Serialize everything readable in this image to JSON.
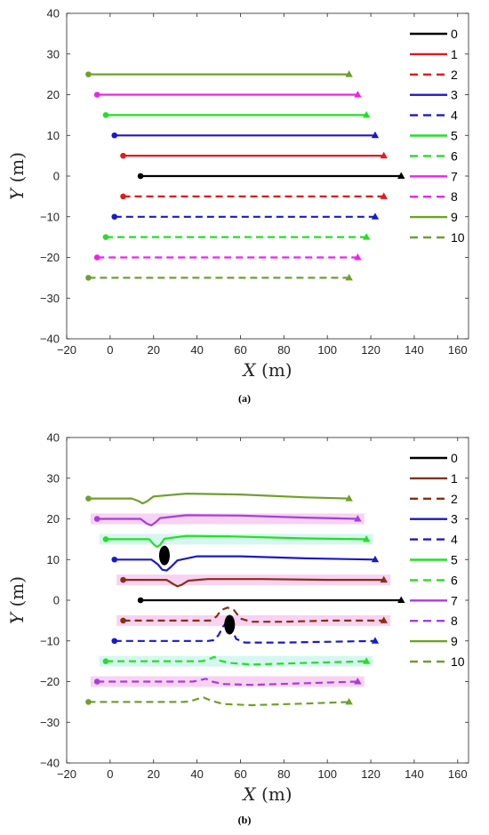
{
  "chart_data": [
    {
      "type": "line",
      "caption": "(a)",
      "xlabel_var": "X",
      "xlabel_unit": "(m)",
      "ylabel_var": "Y",
      "ylabel_unit": "(m)",
      "xlim": [
        -20,
        165
      ],
      "ylim": [
        -40,
        40
      ],
      "xticks": [
        "−20",
        "0",
        "20",
        "40",
        "60",
        "80",
        "100",
        "120",
        "140",
        "160"
      ],
      "xtick_values": [
        -20,
        0,
        20,
        40,
        60,
        80,
        100,
        120,
        140,
        160
      ],
      "yticks": [
        "40",
        "30",
        "20",
        "10",
        "0",
        "−10",
        "−20",
        "−30",
        "−40"
      ],
      "ytick_values": [
        40,
        30,
        20,
        10,
        0,
        -10,
        -20,
        -30,
        -40
      ],
      "grid": false,
      "legend": "top-right",
      "series": [
        {
          "name": "0",
          "color": "#000000",
          "dash": false,
          "points": [
            [
              14,
              0
            ],
            [
              134,
              0
            ]
          ]
        },
        {
          "name": "1",
          "color": "#e41a1c",
          "dash": false,
          "points": [
            [
              6,
              5
            ],
            [
              126,
              5
            ]
          ]
        },
        {
          "name": "2",
          "color": "#e41a1c",
          "dash": true,
          "points": [
            [
              6,
              -5
            ],
            [
              126,
              -5
            ]
          ]
        },
        {
          "name": "3",
          "color": "#1a1ac8",
          "dash": false,
          "points": [
            [
              2,
              10
            ],
            [
              122,
              10
            ]
          ]
        },
        {
          "name": "4",
          "color": "#1a1ac8",
          "dash": true,
          "points": [
            [
              2,
              -10
            ],
            [
              122,
              -10
            ]
          ]
        },
        {
          "name": "5",
          "color": "#22e022",
          "dash": false,
          "points": [
            [
              -2,
              15
            ],
            [
              118,
              15
            ]
          ]
        },
        {
          "name": "6",
          "color": "#22e022",
          "dash": true,
          "points": [
            [
              -2,
              -15
            ],
            [
              118,
              -15
            ]
          ]
        },
        {
          "name": "7",
          "color": "#ee22ee",
          "dash": false,
          "points": [
            [
              -6,
              20
            ],
            [
              114,
              20
            ]
          ]
        },
        {
          "name": "8",
          "color": "#ee22ee",
          "dash": true,
          "points": [
            [
              -6,
              -20
            ],
            [
              114,
              -20
            ]
          ]
        },
        {
          "name": "9",
          "color": "#6fa02a",
          "dash": false,
          "points": [
            [
              -10,
              25
            ],
            [
              110,
              25
            ]
          ]
        },
        {
          "name": "10",
          "color": "#6fa02a",
          "dash": true,
          "points": [
            [
              -10,
              -25
            ],
            [
              110,
              -25
            ]
          ]
        }
      ]
    },
    {
      "type": "line",
      "caption": "(b)",
      "xlabel_var": "X",
      "xlabel_unit": "(m)",
      "ylabel_var": "Y",
      "ylabel_unit": "(m)",
      "xlim": [
        -20,
        165
      ],
      "ylim": [
        -40,
        40
      ],
      "xticks": [
        "−20",
        "0",
        "20",
        "40",
        "60",
        "80",
        "100",
        "120",
        "140",
        "160"
      ],
      "xtick_values": [
        -20,
        0,
        20,
        40,
        60,
        80,
        100,
        120,
        140,
        160
      ],
      "yticks": [
        "40",
        "30",
        "20",
        "10",
        "0",
        "−10",
        "−20",
        "−30",
        "−40"
      ],
      "ytick_values": [
        40,
        30,
        20,
        10,
        0,
        -10,
        -20,
        -30,
        -40
      ],
      "grid": false,
      "legend": "top-right",
      "obstacles": [
        [
          25,
          11
        ],
        [
          55,
          -6
        ]
      ],
      "highlight_bands": [
        {
          "color": "#f7d2f2",
          "y": 20,
          "x": [
            -9,
            117
          ]
        },
        {
          "color": "#d5f7ef",
          "y": 15,
          "x": [
            -5,
            121
          ]
        },
        {
          "color": "#f7d2f2",
          "y": 5,
          "x": [
            3,
            129
          ]
        },
        {
          "color": "#f7d2f2",
          "y": -5,
          "x": [
            3,
            129
          ]
        },
        {
          "color": "#d5f7ef",
          "y": -15,
          "x": [
            -5,
            121
          ]
        },
        {
          "color": "#f7d2f2",
          "y": -20,
          "x": [
            -9,
            117
          ]
        }
      ],
      "series": [
        {
          "name": "0",
          "color": "#000000",
          "dash": false,
          "points": [
            [
              14,
              0
            ],
            [
              134,
              0
            ]
          ]
        },
        {
          "name": "1",
          "color": "#8b2e10",
          "dash": false,
          "points": [
            [
              6,
              5
            ],
            [
              26,
              5
            ],
            [
              29,
              4
            ],
            [
              31,
              3.4
            ],
            [
              33,
              3.8
            ],
            [
              36,
              4.8
            ],
            [
              45,
              5.2
            ],
            [
              70,
              5.2
            ],
            [
              100,
              5
            ],
            [
              126,
              5
            ]
          ]
        },
        {
          "name": "2",
          "color": "#8b2e10",
          "dash": true,
          "points": [
            [
              6,
              -5
            ],
            [
              46,
              -5
            ],
            [
              49,
              -4
            ],
            [
              51,
              -2.5
            ],
            [
              54,
              -1.8
            ],
            [
              57,
              -2.4
            ],
            [
              60,
              -4.5
            ],
            [
              65,
              -5.3
            ],
            [
              80,
              -5.3
            ],
            [
              100,
              -5
            ],
            [
              126,
              -5
            ]
          ]
        },
        {
          "name": "3",
          "color": "#1a1ac8",
          "dash": false,
          "points": [
            [
              2,
              10
            ],
            [
              19,
              10
            ],
            [
              22,
              8.8
            ],
            [
              24,
              7.5
            ],
            [
              26,
              7.3
            ],
            [
              28,
              8.2
            ],
            [
              31,
              9.8
            ],
            [
              40,
              10.8
            ],
            [
              60,
              10.8
            ],
            [
              90,
              10.3
            ],
            [
              122,
              10
            ]
          ]
        },
        {
          "name": "4",
          "color": "#1a1ac8",
          "dash": true,
          "points": [
            [
              2,
              -10
            ],
            [
              45,
              -10
            ],
            [
              48,
              -9.8
            ],
            [
              50,
              -8.5
            ],
            [
              52,
              -6.5
            ],
            [
              54,
              -5.2
            ],
            [
              56,
              -7
            ],
            [
              58,
              -9.5
            ],
            [
              62,
              -10.4
            ],
            [
              80,
              -10.4
            ],
            [
              122,
              -10
            ]
          ]
        },
        {
          "name": "5",
          "color": "#22e022",
          "dash": false,
          "points": [
            [
              -2,
              15
            ],
            [
              18,
              15
            ],
            [
              20,
              13.8
            ],
            [
              21.5,
              13.1
            ],
            [
              23,
              13.6
            ],
            [
              25,
              15.1
            ],
            [
              35,
              15.8
            ],
            [
              55,
              15.7
            ],
            [
              90,
              15.2
            ],
            [
              118,
              15
            ]
          ]
        },
        {
          "name": "6",
          "color": "#22e022",
          "dash": true,
          "points": [
            [
              -2,
              -15
            ],
            [
              42,
              -15
            ],
            [
              45,
              -14.6
            ],
            [
              48,
              -13.9
            ],
            [
              50,
              -14.8
            ],
            [
              55,
              -15.4
            ],
            [
              65,
              -15.8
            ],
            [
              90,
              -15.4
            ],
            [
              118,
              -15
            ]
          ]
        },
        {
          "name": "7",
          "color": "#a63dde",
          "dash": false,
          "points": [
            [
              -6,
              20
            ],
            [
              14,
              20
            ],
            [
              17,
              18.8
            ],
            [
              19,
              18.4
            ],
            [
              21,
              19.2
            ],
            [
              23,
              20.2
            ],
            [
              35,
              20.9
            ],
            [
              60,
              20.8
            ],
            [
              90,
              20.3
            ],
            [
              114,
              20
            ]
          ]
        },
        {
          "name": "8",
          "color": "#a63dde",
          "dash": true,
          "points": [
            [
              -6,
              -20
            ],
            [
              38,
              -20
            ],
            [
              41,
              -19.7
            ],
            [
              44,
              -19.3
            ],
            [
              47,
              -20
            ],
            [
              52,
              -20.6
            ],
            [
              65,
              -20.8
            ],
            [
              90,
              -20.4
            ],
            [
              114,
              -20
            ]
          ]
        },
        {
          "name": "9",
          "color": "#6fa02a",
          "dash": false,
          "points": [
            [
              -10,
              25
            ],
            [
              10,
              25
            ],
            [
              13,
              24.4
            ],
            [
              15,
              23.8
            ],
            [
              17,
              24.3
            ],
            [
              20,
              25.5
            ],
            [
              35,
              26.2
            ],
            [
              60,
              26
            ],
            [
              90,
              25.3
            ],
            [
              110,
              25
            ]
          ]
        },
        {
          "name": "10",
          "color": "#6fa02a",
          "dash": true,
          "points": [
            [
              -10,
              -25
            ],
            [
              34,
              -25
            ],
            [
              37,
              -24.8
            ],
            [
              40,
              -24.3
            ],
            [
              43,
              -23.9
            ],
            [
              46,
              -24.6
            ],
            [
              52,
              -25.5
            ],
            [
              65,
              -25.8
            ],
            [
              90,
              -25.4
            ],
            [
              110,
              -25
            ]
          ]
        }
      ]
    }
  ]
}
